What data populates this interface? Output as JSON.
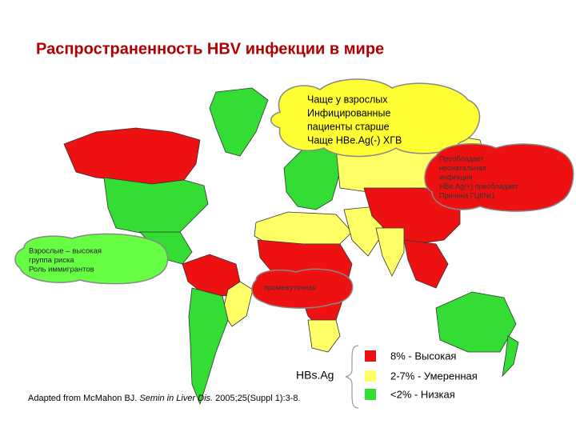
{
  "title": "Распространенность HBV инфекции в мире",
  "callouts": [
    {
      "lines": [
        "Чаще у взрослых",
        "Инфицированные",
        "пациенты старше",
        "Чаще HBe.Ag(-) ХГВ"
      ]
    },
    {
      "lines": [
        "Преобладает",
        "неонатальная",
        "инфекция",
        "HBe.Ag(+) преобладает",
        "Причина ГЦК№1"
      ]
    },
    {
      "lines": [
        "Взрослые – высокая",
        "группа риска",
        "Роль иммигрантов"
      ]
    },
    {
      "lines": [
        "промежуточная"
      ]
    }
  ],
  "legend": {
    "title": "HBs.Ag",
    "items": [
      {
        "label": "8% - Высокая",
        "color": "#ee1111"
      },
      {
        "label": "2-7% - Умеренная",
        "color": "#ffff66"
      },
      {
        "label": "<2% - Низкая",
        "color": "#33dd33"
      }
    ]
  },
  "citation": {
    "before": "Adapted from McMahon BJ. ",
    "journal": "Semin in Liver Dis.",
    "after": " 2005;25(Suppl 1):3-8."
  }
}
